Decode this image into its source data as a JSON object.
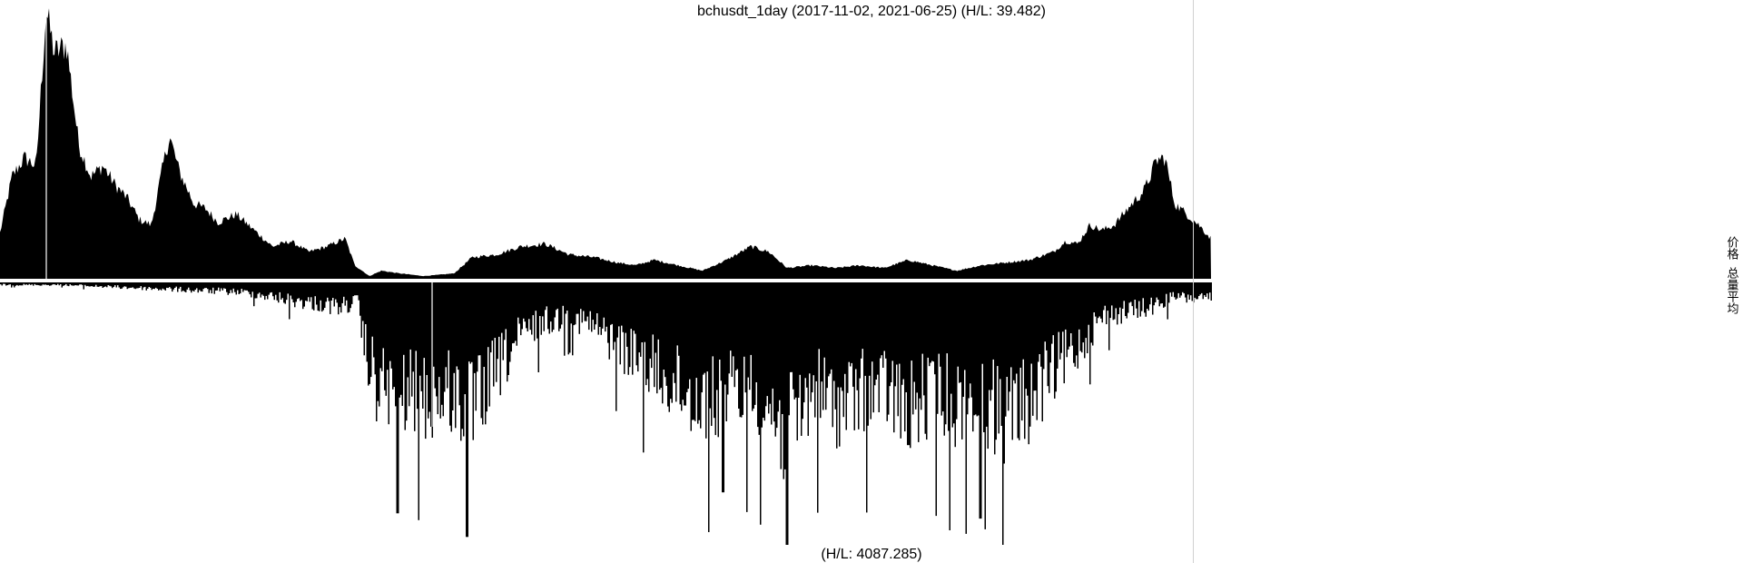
{
  "chart_data": [
    {
      "type": "area",
      "title": "bchusdt_1day (2017-11-02, 2021-06-25) (H/L: 39.482)",
      "x_range": [
        "2017-11-02",
        "2021-06-25"
      ],
      "series": [
        {
          "name": "价格"
        }
      ],
      "high_low_ratio": 39.482,
      "note_shape": [
        [
          0.0,
          0.17
        ],
        [
          0.01,
          0.38
        ],
        [
          0.02,
          0.45
        ],
        [
          0.03,
          0.42
        ],
        [
          0.038,
          1.0
        ],
        [
          0.045,
          0.84
        ],
        [
          0.055,
          0.87
        ],
        [
          0.065,
          0.5
        ],
        [
          0.075,
          0.38
        ],
        [
          0.085,
          0.42
        ],
        [
          0.095,
          0.35
        ],
        [
          0.105,
          0.3
        ],
        [
          0.115,
          0.22
        ],
        [
          0.125,
          0.2
        ],
        [
          0.135,
          0.43
        ],
        [
          0.14,
          0.53
        ],
        [
          0.148,
          0.4
        ],
        [
          0.16,
          0.28
        ],
        [
          0.17,
          0.26
        ],
        [
          0.18,
          0.21
        ],
        [
          0.195,
          0.24
        ],
        [
          0.21,
          0.18
        ],
        [
          0.225,
          0.12
        ],
        [
          0.24,
          0.14
        ],
        [
          0.255,
          0.1
        ],
        [
          0.27,
          0.12
        ],
        [
          0.285,
          0.15
        ],
        [
          0.293,
          0.05
        ],
        [
          0.305,
          0.01
        ],
        [
          0.315,
          0.03
        ],
        [
          0.33,
          0.02
        ],
        [
          0.35,
          0.01
        ],
        [
          0.375,
          0.02
        ],
        [
          0.39,
          0.08
        ],
        [
          0.41,
          0.09
        ],
        [
          0.43,
          0.12
        ],
        [
          0.45,
          0.13
        ],
        [
          0.47,
          0.09
        ],
        [
          0.49,
          0.08
        ],
        [
          0.51,
          0.06
        ],
        [
          0.525,
          0.05
        ],
        [
          0.54,
          0.07
        ],
        [
          0.56,
          0.05
        ],
        [
          0.58,
          0.03
        ],
        [
          0.6,
          0.07
        ],
        [
          0.62,
          0.12
        ],
        [
          0.635,
          0.1
        ],
        [
          0.65,
          0.04
        ],
        [
          0.67,
          0.05
        ],
        [
          0.69,
          0.04
        ],
        [
          0.71,
          0.05
        ],
        [
          0.73,
          0.04
        ],
        [
          0.75,
          0.07
        ],
        [
          0.77,
          0.05
        ],
        [
          0.79,
          0.03
        ],
        [
          0.81,
          0.05
        ],
        [
          0.83,
          0.06
        ],
        [
          0.85,
          0.07
        ],
        [
          0.87,
          0.1
        ],
        [
          0.88,
          0.14
        ],
        [
          0.89,
          0.13
        ],
        [
          0.9,
          0.2
        ],
        [
          0.91,
          0.18
        ],
        [
          0.92,
          0.2
        ],
        [
          0.935,
          0.28
        ],
        [
          0.945,
          0.33
        ],
        [
          0.955,
          0.44
        ],
        [
          0.962,
          0.45
        ],
        [
          0.97,
          0.28
        ],
        [
          0.98,
          0.24
        ],
        [
          0.99,
          0.2
        ],
        [
          1.0,
          0.15
        ]
      ]
    },
    {
      "type": "bar",
      "title": "(H/L: 4087.285)",
      "x_range": [
        "2017-11-02",
        "2021-06-25"
      ],
      "series": [
        {
          "name": "总量平均"
        }
      ],
      "high_low_ratio": 4087.285,
      "note_shape": [
        [
          0.0,
          0.01
        ],
        [
          0.05,
          0.01
        ],
        [
          0.1,
          0.02
        ],
        [
          0.15,
          0.03
        ],
        [
          0.2,
          0.04
        ],
        [
          0.25,
          0.08
        ],
        [
          0.28,
          0.1
        ],
        [
          0.295,
          0.08
        ],
        [
          0.3,
          0.26
        ],
        [
          0.31,
          0.42
        ],
        [
          0.33,
          0.45
        ],
        [
          0.35,
          0.48
        ],
        [
          0.37,
          0.45
        ],
        [
          0.39,
          0.53
        ],
        [
          0.41,
          0.36
        ],
        [
          0.43,
          0.22
        ],
        [
          0.45,
          0.16
        ],
        [
          0.47,
          0.14
        ],
        [
          0.49,
          0.18
        ],
        [
          0.51,
          0.26
        ],
        [
          0.53,
          0.33
        ],
        [
          0.55,
          0.4
        ],
        [
          0.57,
          0.46
        ],
        [
          0.59,
          0.5
        ],
        [
          0.61,
          0.44
        ],
        [
          0.63,
          0.48
        ],
        [
          0.65,
          0.64
        ],
        [
          0.67,
          0.44
        ],
        [
          0.69,
          0.5
        ],
        [
          0.71,
          0.46
        ],
        [
          0.73,
          0.44
        ],
        [
          0.75,
          0.52
        ],
        [
          0.77,
          0.46
        ],
        [
          0.79,
          0.5
        ],
        [
          0.81,
          0.48
        ],
        [
          0.83,
          0.56
        ],
        [
          0.85,
          0.48
        ],
        [
          0.87,
          0.36
        ],
        [
          0.89,
          0.26
        ],
        [
          0.91,
          0.14
        ],
        [
          0.93,
          0.12
        ],
        [
          0.95,
          0.1
        ],
        [
          0.97,
          0.06
        ],
        [
          1.0,
          0.07
        ]
      ]
    }
  ]
}
